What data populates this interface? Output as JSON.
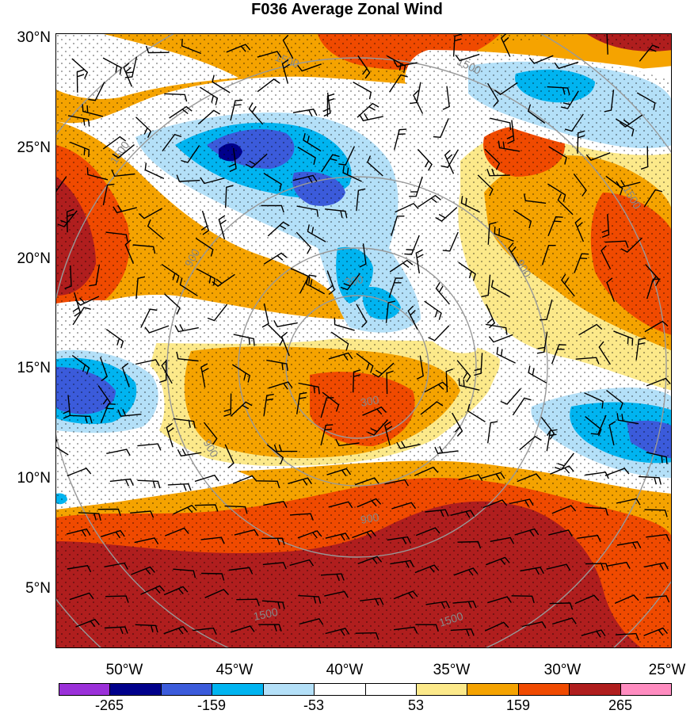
{
  "title": "F036 Average Zonal Wind",
  "lat_labels": [
    "30°N",
    "25°N",
    "20°N",
    "15°N",
    "10°N",
    "5°N"
  ],
  "lon_labels": [
    "50°W",
    "45°W",
    "40°W",
    "35°W",
    "30°W",
    "25°W"
  ],
  "colorbar": {
    "colors": [
      "#9b30d9",
      "#00008b",
      "#3b5bdb",
      "#00b4f0",
      "#b4e0f8",
      "#ffffff",
      "#ffffff",
      "#fce98a",
      "#f5a300",
      "#f04a00",
      "#b01e1e",
      "#ff8cc0"
    ],
    "labels": [
      "-265",
      "-159",
      "-53",
      "53",
      "159",
      "265"
    ]
  },
  "field_colors": {
    "strong_easterly": "#3b5bdb",
    "easterly": "#00b4f0",
    "weak_easterly": "#b4e0f8",
    "calm": "#ffffff",
    "weak_westerly": "#fce98a",
    "westerly": "#f5a300",
    "strong_westerly": "#f04a00",
    "very_strong_westerly": "#b01e1e"
  },
  "range_ring_labels": [
    "1500",
    "1500",
    "1500",
    "1500",
    "900",
    "900",
    "900",
    "900",
    "300",
    "300",
    "1500",
    "1500"
  ]
}
